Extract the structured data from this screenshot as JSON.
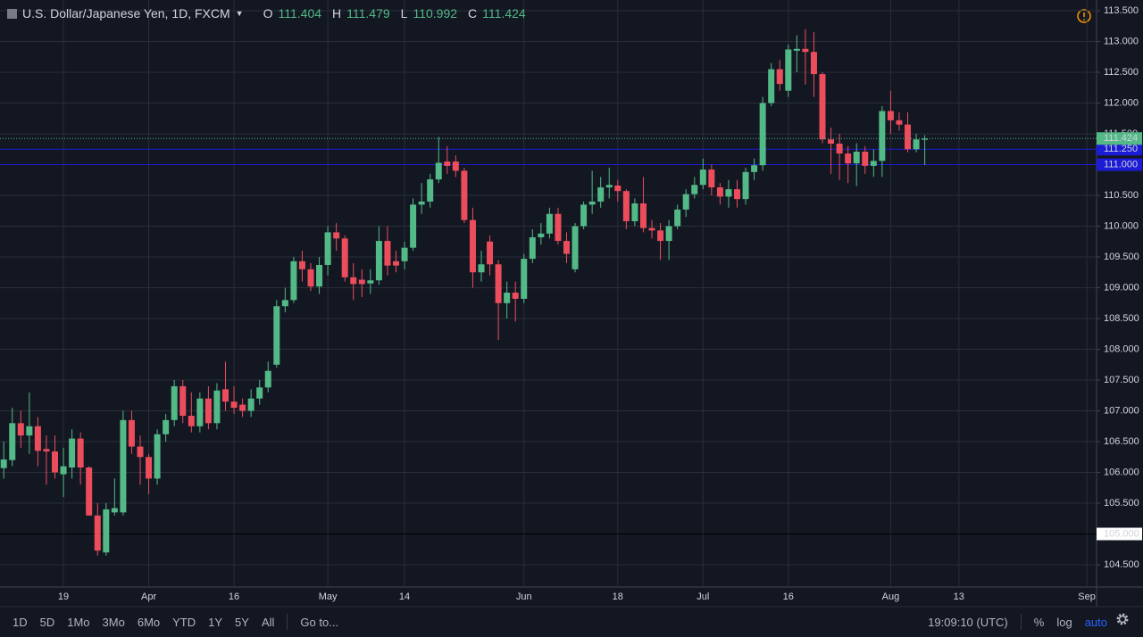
{
  "legend": {
    "symbol": "U.S. Dollar/Japanese Yen, 1D, FXCM",
    "ohlc": [
      {
        "key": "O",
        "value": "111.404"
      },
      {
        "key": "H",
        "value": "111.479"
      },
      {
        "key": "L",
        "value": "110.992"
      },
      {
        "key": "C",
        "value": "111.424"
      }
    ]
  },
  "chart_data": {
    "type": "candlestick",
    "up_color": "#53b987",
    "down_color": "#eb4d5c",
    "grid": true,
    "ylim": [
      104.138,
      113.674
    ],
    "yticks": [
      {
        "value": 104.5,
        "label": "104.500"
      },
      {
        "value": 105,
        "label": "105.000"
      },
      {
        "value": 105.5,
        "label": "105.500"
      },
      {
        "value": 106,
        "label": "106.000"
      },
      {
        "value": 106.5,
        "label": "106.500"
      },
      {
        "value": 107,
        "label": "107.000"
      },
      {
        "value": 107.5,
        "label": "107.500"
      },
      {
        "value": 108,
        "label": "108.000"
      },
      {
        "value": 108.5,
        "label": "108.500"
      },
      {
        "value": 109,
        "label": "109.000"
      },
      {
        "value": 109.5,
        "label": "109.500"
      },
      {
        "value": 110,
        "label": "110.000"
      },
      {
        "value": 110.5,
        "label": "110.500"
      },
      {
        "value": 111,
        "label": "111.000"
      },
      {
        "value": 111.5,
        "label": "111.500"
      },
      {
        "value": 112,
        "label": "112.000"
      },
      {
        "value": 112.5,
        "label": "112.500"
      },
      {
        "value": 113,
        "label": "113.000"
      },
      {
        "value": 113.5,
        "label": "113.500"
      }
    ],
    "categories": [
      null,
      null,
      null,
      null,
      null,
      null,
      null,
      "19",
      null,
      null,
      null,
      null,
      null,
      null,
      null,
      null,
      null,
      "Apr",
      null,
      null,
      null,
      null,
      null,
      null,
      null,
      null,
      null,
      "16",
      null,
      null,
      null,
      null,
      null,
      null,
      null,
      null,
      null,
      null,
      "May",
      null,
      null,
      null,
      null,
      null,
      null,
      null,
      null,
      "14",
      null,
      null,
      null,
      null,
      null,
      null,
      null,
      null,
      null,
      null,
      null,
      null,
      null,
      "Jun",
      null,
      null,
      null,
      null,
      null,
      null,
      null,
      null,
      null,
      null,
      "18",
      null,
      null,
      null,
      null,
      null,
      null,
      null,
      null,
      null,
      "Jul",
      null,
      null,
      null,
      null,
      null,
      null,
      null,
      null,
      null,
      "16",
      null,
      null,
      null,
      null,
      null,
      null,
      null,
      null,
      null,
      null,
      null,
      "Aug",
      null,
      null,
      null,
      null,
      null,
      null,
      null,
      "13",
      null,
      null,
      null,
      null,
      null,
      null,
      null,
      null,
      null,
      null,
      null,
      null,
      null,
      null,
      "Sep"
    ],
    "open": [
      106.07,
      106.2,
      106.8,
      106.6,
      106.75,
      106.38,
      106.34,
      105.97,
      106.08,
      106.55,
      106.08,
      105.3,
      104.7,
      105.35,
      105.35,
      106.85,
      106.42,
      106.25,
      105.9,
      106.62,
      106.85,
      107.4,
      106.92,
      106.75,
      107.2,
      106.8,
      107.35,
      107.15,
      107.1,
      107.0,
      107.2,
      107.38,
      107.75,
      108.7,
      108.8,
      109.43,
      109.3,
      109.02,
      109.37,
      109.9,
      109.8,
      109.17,
      109.13,
      109.07,
      109.12,
      109.76,
      109.43,
      109.43,
      109.65,
      110.35,
      110.4,
      110.76,
      111.05,
      111.05,
      110.9,
      110.1,
      109.25,
      109.75,
      109.38,
      108.75,
      108.92,
      108.82,
      109.47,
      109.82,
      109.88,
      110.2,
      109.76,
      109.3,
      110.0,
      110.35,
      110.4,
      110.63,
      110.66,
      110.57,
      110.08,
      110.37,
      109.97,
      109.93,
      109.76,
      110.0,
      110.27,
      110.52,
      110.67,
      110.92,
      110.63,
      110.48,
      110.6,
      110.44,
      110.88,
      110.99,
      112.0,
      112.55,
      112.2,
      112.85,
      112.88,
      112.83,
      112.47,
      111.41,
      111.34,
      111.18,
      111.02,
      111.21,
      110.98,
      111.06,
      111.87,
      111.72,
      111.65,
      111.25,
      111.404,
      null,
      null,
      null,
      null,
      null,
      null,
      null,
      null,
      null,
      null,
      null,
      null,
      null,
      null,
      null,
      null,
      null,
      null,
      null
    ],
    "high": [
      106.5,
      107.05,
      107.0,
      107.3,
      106.9,
      106.6,
      106.6,
      106.4,
      106.7,
      106.65,
      106.1,
      105.5,
      105.5,
      105.9,
      107.0,
      107.0,
      106.6,
      106.3,
      106.7,
      106.95,
      107.5,
      107.5,
      107.3,
      107.3,
      107.4,
      107.45,
      107.8,
      107.4,
      107.2,
      107.35,
      107.5,
      107.8,
      108.8,
      109.0,
      109.5,
      109.6,
      109.4,
      109.5,
      110.0,
      110.05,
      109.85,
      109.4,
      109.3,
      109.3,
      110.0,
      110.0,
      109.6,
      109.75,
      110.45,
      110.7,
      110.85,
      111.45,
      111.3,
      111.15,
      110.95,
      110.3,
      109.6,
      109.85,
      109.45,
      109.1,
      109.1,
      109.55,
      109.95,
      110.05,
      110.3,
      110.3,
      109.9,
      110.05,
      110.4,
      110.9,
      110.8,
      110.95,
      110.75,
      110.6,
      110.45,
      110.8,
      110.1,
      110.05,
      110.1,
      110.35,
      110.6,
      110.8,
      111.1,
      111.0,
      110.7,
      110.75,
      110.75,
      110.95,
      111.1,
      112.1,
      112.65,
      112.7,
      112.95,
      113.1,
      113.2,
      113.15,
      112.5,
      111.6,
      111.5,
      111.3,
      111.35,
      111.3,
      111.25,
      111.95,
      112.2,
      111.85,
      111.85,
      111.5,
      111.479,
      null,
      null,
      null,
      null,
      null,
      null,
      null,
      null,
      null,
      null,
      null,
      null,
      null,
      null,
      null,
      null,
      null,
      null,
      null
    ],
    "low": [
      105.9,
      106.1,
      106.4,
      106.3,
      106.1,
      105.8,
      105.9,
      105.6,
      105.9,
      105.8,
      105.3,
      104.65,
      104.65,
      105.3,
      105.3,
      106.3,
      105.8,
      105.65,
      105.8,
      106.5,
      106.75,
      106.8,
      106.65,
      106.65,
      106.7,
      106.7,
      107.0,
      106.95,
      106.9,
      106.9,
      107.1,
      107.3,
      107.7,
      108.6,
      108.75,
      109.1,
      108.95,
      108.9,
      109.2,
      109.6,
      109.1,
      108.8,
      108.85,
      108.9,
      109.05,
      109.2,
      109.25,
      109.3,
      109.6,
      110.2,
      110.3,
      110.7,
      110.85,
      110.8,
      110.05,
      109.0,
      109.1,
      109.2,
      108.15,
      108.5,
      108.45,
      108.75,
      109.4,
      109.7,
      109.8,
      109.7,
      109.4,
      109.25,
      109.95,
      110.2,
      110.3,
      110.45,
      110.4,
      109.95,
      110.0,
      109.9,
      109.8,
      109.45,
      109.45,
      109.95,
      110.15,
      110.45,
      110.6,
      110.5,
      110.35,
      110.3,
      110.3,
      110.35,
      110.75,
      110.9,
      111.95,
      112.2,
      112.1,
      112.5,
      112.3,
      112.1,
      111.35,
      110.85,
      110.75,
      110.7,
      110.65,
      110.85,
      110.8,
      110.8,
      111.5,
      111.55,
      111.2,
      111.2,
      110.992,
      null,
      null,
      null,
      null,
      null,
      null,
      null,
      null,
      null,
      null,
      null,
      null,
      null,
      null,
      null,
      null,
      null,
      null,
      null
    ],
    "close": [
      106.21,
      106.8,
      106.6,
      106.75,
      106.35,
      106.34,
      106.0,
      106.1,
      106.55,
      106.08,
      105.3,
      104.73,
      105.4,
      105.42,
      106.85,
      106.42,
      106.25,
      105.9,
      106.62,
      106.85,
      107.4,
      106.92,
      106.75,
      107.2,
      106.8,
      107.33,
      107.15,
      107.05,
      107.0,
      107.2,
      107.38,
      107.65,
      108.7,
      108.8,
      109.43,
      109.3,
      109.02,
      109.37,
      109.9,
      109.8,
      109.17,
      109.06,
      109.06,
      109.12,
      109.76,
      109.36,
      109.36,
      109.65,
      110.35,
      110.4,
      110.76,
      111.03,
      110.98,
      110.9,
      110.1,
      109.25,
      109.38,
      109.38,
      108.75,
      108.92,
      108.82,
      109.47,
      109.82,
      109.88,
      110.2,
      109.76,
      109.55,
      110.0,
      110.35,
      110.4,
      110.63,
      110.67,
      110.57,
      110.08,
      110.37,
      109.97,
      109.93,
      109.76,
      110.0,
      110.27,
      110.52,
      110.67,
      110.92,
      110.63,
      110.48,
      110.6,
      110.44,
      110.88,
      110.99,
      112.0,
      112.55,
      112.31,
      112.87,
      112.88,
      112.83,
      112.47,
      111.41,
      111.34,
      111.18,
      111.02,
      111.21,
      110.98,
      111.06,
      111.87,
      111.72,
      111.65,
      111.25,
      111.41,
      111.424,
      null,
      null,
      null,
      null,
      null,
      null,
      null,
      null,
      null,
      null,
      null,
      null,
      null,
      null,
      null,
      null,
      null,
      null,
      null
    ],
    "price_lines": [
      {
        "value": 111.25,
        "label": "111.250",
        "color": "#1c1cd6",
        "label_fill": "#1c1cd6",
        "text_color": "#ffffff"
      },
      {
        "value": 111,
        "label": "111.000",
        "color": "#1c1cd6",
        "label_fill": "#1c1cd6",
        "text_color": "#ffffff"
      },
      {
        "value": 105,
        "label": "105.000",
        "color": "#000000",
        "label_fill": "#ffffff",
        "text_color": "#000000"
      }
    ],
    "last_price": {
      "value": 111.424,
      "label": "111.424",
      "color": "#53b987"
    }
  },
  "toolbar": {
    "ranges": [
      "1D",
      "5D",
      "1Mo",
      "3Mo",
      "6Mo",
      "YTD",
      "1Y",
      "5Y",
      "All"
    ],
    "goto": "Go to...",
    "clock": "19:09:10 (UTC)",
    "percent": "%",
    "log": "log",
    "auto": "auto"
  }
}
